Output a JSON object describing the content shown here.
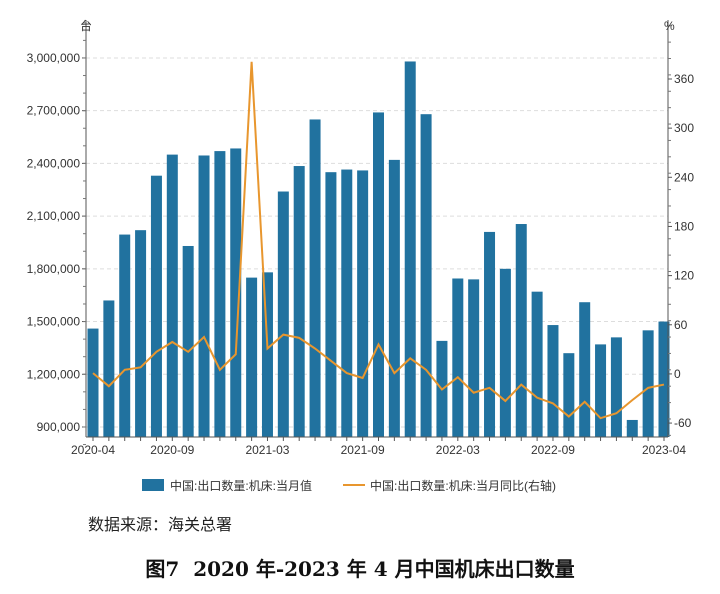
{
  "chart_data": {
    "type": "bar",
    "categories": [
      "2020-04",
      "2020-05",
      "2020-06",
      "2020-07",
      "2020-08",
      "2020-09",
      "2020-10",
      "2020-11",
      "2020-12",
      "2021-01",
      "2021-02",
      "2021-03",
      "2021-04",
      "2021-05",
      "2021-06",
      "2021-07",
      "2021-08",
      "2021-09",
      "2021-10",
      "2021-11",
      "2021-12",
      "2022-01",
      "2022-02",
      "2022-03",
      "2022-04",
      "2022-05",
      "2022-06",
      "2022-07",
      "2022-08",
      "2022-09",
      "2022-10",
      "2022-11",
      "2022-12",
      "2023-01",
      "2023-02",
      "2023-03",
      "2023-04"
    ],
    "x_tick_labels": [
      "2020-04",
      "2020-09",
      "2021-03",
      "2021-09",
      "2022-03",
      "2022-09",
      "2023-04"
    ],
    "series": [
      {
        "name": "中国:出口数量:机床:当月值",
        "type": "bar",
        "axis": "left",
        "color": "#21729f",
        "values": [
          1460000,
          1620000,
          1995000,
          2020000,
          2330000,
          2450000,
          1930000,
          2445000,
          2470000,
          2485000,
          1750000,
          1780000,
          2240000,
          2385000,
          2650000,
          2350000,
          2365000,
          2360000,
          2690000,
          2420000,
          2980000,
          2680000,
          1390000,
          1745000,
          1740000,
          2010000,
          1800000,
          2055000,
          1670000,
          1480000,
          1320000,
          1610000,
          1370000,
          1410000,
          940000,
          1450000,
          1500000
        ]
      },
      {
        "name": "中国:出口数量:机床:当月同比(右轴)",
        "type": "line",
        "axis": "right",
        "color": "#e8962e",
        "values": [
          1,
          -15,
          5,
          8,
          27,
          39,
          27,
          45,
          5,
          24,
          381,
          31,
          48,
          44,
          31,
          16,
          1,
          -5,
          36,
          1,
          19,
          5,
          -19,
          -4,
          -23,
          -17,
          -33,
          -13,
          -29,
          -36,
          -52,
          -34,
          -54,
          -48,
          -32,
          -17,
          -13
        ]
      }
    ],
    "left_axis": {
      "unit": "台",
      "ticks": [
        900000,
        1200000,
        1500000,
        1800000,
        2100000,
        2400000,
        2700000,
        3000000
      ],
      "tick_labels": [
        "900,000",
        "1,200,000",
        "1,500,000",
        "1,800,000",
        "2,100,000",
        "2,400,000",
        "2,700,000",
        "3,000,000"
      ],
      "range": [
        843000,
        3216000
      ]
    },
    "right_axis": {
      "unit": "%",
      "ticks": [
        -60,
        0,
        60,
        120,
        180,
        240,
        300,
        360
      ],
      "range": [
        -77,
        432
      ]
    },
    "grid": true,
    "legend": "bottom"
  },
  "source": "数据来源：海关总署",
  "caption": "图7  2020 年-2023 年 4 月中国机床出口数量"
}
